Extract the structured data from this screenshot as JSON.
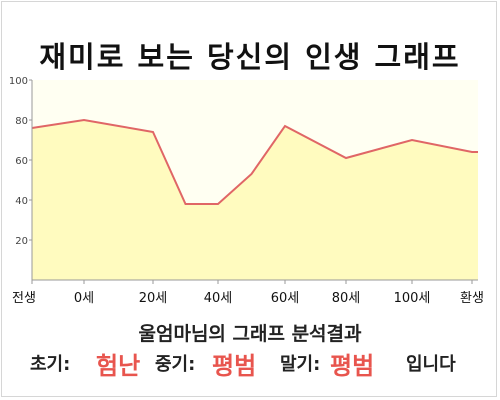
{
  "title": "재미로 보는 당신의 인생 그래프",
  "chart_data": {
    "type": "area",
    "x": [
      "전생",
      "0세",
      "20세",
      "40세",
      "60세",
      "80세",
      "100세",
      "환생"
    ],
    "points": [
      {
        "x": "전생",
        "y": 76
      },
      {
        "x": "0세",
        "y": 80
      },
      {
        "x": "20세",
        "y": 74
      },
      {
        "x": "30세",
        "y": 38
      },
      {
        "x": "40세",
        "y": 38
      },
      {
        "x": "50세",
        "y": 53
      },
      {
        "x": "60세",
        "y": 77
      },
      {
        "x": "80세",
        "y": 61
      },
      {
        "x": "100세",
        "y": 70
      },
      {
        "x": "환생",
        "y": 64
      }
    ],
    "y_ticks": [
      "100",
      "80",
      "60",
      "40",
      "20"
    ],
    "ylim": [
      0,
      100
    ],
    "grid": false,
    "line_color": "#e06666",
    "fill_color": "#fffbbf"
  },
  "result": {
    "subtitle": "울엄마님의 그래프 분석결과",
    "early_label": "초기:",
    "early_value": "험난",
    "middle_label": "중기:",
    "middle_value": "평범",
    "late_label": "말기:",
    "late_value": "평범",
    "ending": "입니다"
  }
}
